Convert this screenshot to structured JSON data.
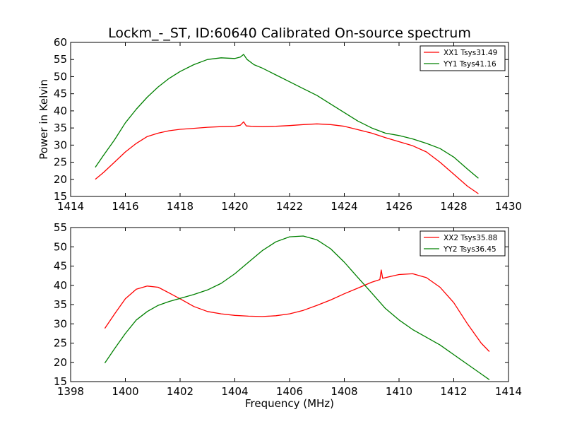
{
  "chart_data": [
    {
      "type": "line",
      "title": "Lockm_-_ST, ID:60640 Calibrated On-source spectrum",
      "xlabel": "",
      "ylabel": "Power in Kelvin",
      "xlim": [
        1414,
        1430
      ],
      "ylim": [
        15,
        60
      ],
      "xticks": [
        "1414",
        "1416",
        "1418",
        "1420",
        "1422",
        "1424",
        "1426",
        "1428",
        "1430"
      ],
      "yticks": [
        "15",
        "20",
        "25",
        "30",
        "35",
        "40",
        "45",
        "50",
        "55",
        "60"
      ],
      "grid": false,
      "legend_position": "top-right",
      "series": [
        {
          "name": "XX1 Tsys31.49",
          "color": "#ff0000",
          "x": [
            1414.9,
            1415.2,
            1415.6,
            1416.0,
            1416.4,
            1416.8,
            1417.2,
            1417.6,
            1418.0,
            1418.5,
            1419.0,
            1419.5,
            1420.0,
            1420.2,
            1420.32,
            1420.42,
            1420.6,
            1421.0,
            1421.5,
            1422.0,
            1422.5,
            1423.0,
            1423.5,
            1424.0,
            1424.5,
            1425.0,
            1425.5,
            1426.0,
            1426.5,
            1427.0,
            1427.5,
            1428.0,
            1428.5,
            1428.9
          ],
          "y": [
            20.0,
            22.0,
            25.0,
            28.0,
            30.5,
            32.5,
            33.5,
            34.2,
            34.6,
            34.9,
            35.2,
            35.4,
            35.5,
            35.8,
            36.8,
            35.6,
            35.5,
            35.4,
            35.5,
            35.7,
            36.0,
            36.2,
            36.0,
            35.5,
            34.5,
            33.5,
            32.2,
            31.0,
            29.8,
            28.0,
            25.0,
            21.5,
            18.0,
            15.8
          ]
        },
        {
          "name": "YY1 Tsys41.16",
          "color": "#008000",
          "x": [
            1414.9,
            1415.2,
            1415.6,
            1416.0,
            1416.4,
            1416.8,
            1417.2,
            1417.6,
            1418.0,
            1418.5,
            1419.0,
            1419.5,
            1420.0,
            1420.2,
            1420.32,
            1420.45,
            1420.7,
            1421.0,
            1421.5,
            1422.0,
            1422.5,
            1423.0,
            1423.5,
            1424.0,
            1424.5,
            1425.0,
            1425.5,
            1426.0,
            1426.5,
            1427.0,
            1427.5,
            1428.0,
            1428.5,
            1428.9
          ],
          "y": [
            23.5,
            27.0,
            31.5,
            36.5,
            40.5,
            44.0,
            47.0,
            49.5,
            51.5,
            53.5,
            55.0,
            55.5,
            55.3,
            55.7,
            56.5,
            55.0,
            53.5,
            52.5,
            50.5,
            48.5,
            46.5,
            44.5,
            42.0,
            39.5,
            37.0,
            35.0,
            33.5,
            32.8,
            31.8,
            30.5,
            29.0,
            26.5,
            23.0,
            20.3
          ]
        }
      ]
    },
    {
      "type": "line",
      "title": "",
      "xlabel": "Frequency (MHz)",
      "ylabel": "",
      "xlim": [
        1398,
        1414
      ],
      "ylim": [
        15,
        55
      ],
      "xticks": [
        "1398",
        "1400",
        "1402",
        "1404",
        "1406",
        "1408",
        "1410",
        "1412",
        "1414"
      ],
      "yticks": [
        "15",
        "20",
        "25",
        "30",
        "35",
        "40",
        "45",
        "50",
        "55"
      ],
      "grid": false,
      "legend_position": "top-right",
      "series": [
        {
          "name": "XX2 Tsys35.88",
          "color": "#ff0000",
          "x": [
            1399.25,
            1399.6,
            1400.0,
            1400.4,
            1400.8,
            1401.2,
            1401.6,
            1402.0,
            1402.5,
            1403.0,
            1403.5,
            1404.0,
            1404.5,
            1405.0,
            1405.5,
            1406.0,
            1406.5,
            1407.0,
            1407.5,
            1408.0,
            1408.5,
            1409.0,
            1409.3,
            1409.35,
            1409.4,
            1409.5,
            1410.0,
            1410.5,
            1411.0,
            1411.5,
            1412.0,
            1412.5,
            1413.0,
            1413.3
          ],
          "y": [
            28.8,
            32.5,
            36.5,
            39.0,
            39.8,
            39.5,
            38.0,
            36.5,
            34.5,
            33.2,
            32.6,
            32.2,
            32.0,
            31.9,
            32.1,
            32.6,
            33.5,
            34.8,
            36.2,
            37.8,
            39.3,
            40.8,
            41.5,
            44.0,
            41.8,
            42.0,
            42.8,
            43.0,
            42.0,
            39.5,
            35.5,
            30.0,
            25.0,
            22.8
          ]
        },
        {
          "name": "YY2 Tsys36.45",
          "color": "#008000",
          "x": [
            1399.25,
            1399.6,
            1400.0,
            1400.4,
            1400.8,
            1401.2,
            1401.6,
            1402.0,
            1402.5,
            1403.0,
            1403.5,
            1404.0,
            1404.5,
            1405.0,
            1405.5,
            1406.0,
            1406.5,
            1407.0,
            1407.5,
            1408.0,
            1408.5,
            1409.0,
            1409.5,
            1410.0,
            1410.5,
            1411.0,
            1411.5,
            1412.0,
            1412.5,
            1413.0,
            1413.3
          ],
          "y": [
            19.8,
            23.5,
            27.5,
            31.0,
            33.2,
            34.8,
            35.8,
            36.6,
            37.6,
            38.8,
            40.5,
            43.0,
            46.0,
            49.0,
            51.3,
            52.6,
            52.8,
            51.8,
            49.5,
            46.0,
            42.0,
            38.0,
            34.0,
            31.0,
            28.5,
            26.5,
            24.5,
            22.0,
            19.5,
            17.0,
            15.5
          ]
        }
      ]
    }
  ]
}
